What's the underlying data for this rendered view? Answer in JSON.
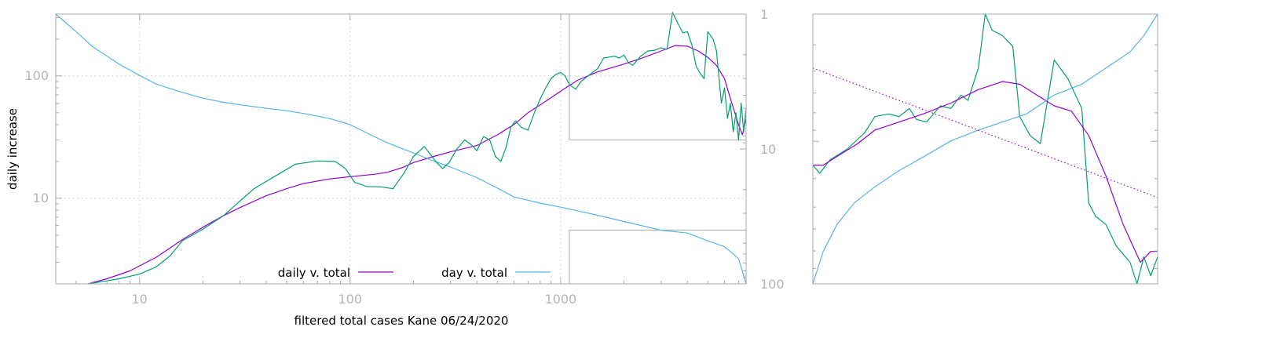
{
  "chart_data": [
    {
      "type": "line",
      "xlabel": "filtered total cases Kane 06/24/2020",
      "ylabel": "daily increase",
      "x_scale": "log",
      "y_scale": "log",
      "xlim": [
        4,
        7600
      ],
      "ylim": [
        2,
        320
      ],
      "x_ticks": [
        10,
        100,
        1000
      ],
      "y_ticks": [
        10,
        100
      ],
      "y2_scale": "log-reversed",
      "y2lim": [
        1,
        100
      ],
      "y2_ticks": [
        1,
        10,
        100
      ],
      "grid": true,
      "legend_position": "bottom-center",
      "inset_boxes": [
        {
          "x": [
            1100,
            7600
          ],
          "y": [
            30,
            320
          ]
        },
        {
          "x": [
            1100,
            7600
          ],
          "y": [
            2,
            5.5
          ]
        }
      ],
      "series": [
        {
          "name": "daily v. total",
          "color": "#9400d3",
          "axis": "y",
          "points": [
            [
              5.7,
              2
            ],
            [
              7,
              2.2
            ],
            [
              9,
              2.55
            ],
            [
              12,
              3.3
            ],
            [
              16,
              4.6
            ],
            [
              20,
              5.8
            ],
            [
              25,
              7.2
            ],
            [
              30,
              8.4
            ],
            [
              40,
              10.5
            ],
            [
              50,
              12
            ],
            [
              60,
              13.2
            ],
            [
              80,
              14.4
            ],
            [
              100,
              15
            ],
            [
              130,
              15.7
            ],
            [
              150,
              16.3
            ],
            [
              180,
              18
            ],
            [
              200,
              19.6
            ],
            [
              250,
              22
            ],
            [
              300,
              24
            ],
            [
              400,
              27
            ],
            [
              500,
              33
            ],
            [
              600,
              40
            ],
            [
              700,
              50
            ],
            [
              800,
              58
            ],
            [
              1000,
              75
            ],
            [
              1200,
              92
            ],
            [
              1500,
              108
            ],
            [
              2000,
              125
            ],
            [
              2500,
              142
            ],
            [
              3000,
              160
            ],
            [
              3500,
              177
            ],
            [
              4000,
              175
            ],
            [
              4500,
              160
            ],
            [
              5000,
              142
            ],
            [
              5500,
              122
            ],
            [
              6000,
              95
            ],
            [
              6500,
              60
            ],
            [
              7000,
              40
            ],
            [
              7300,
              33
            ],
            [
              7600,
              45
            ]
          ]
        },
        {
          "name": "day v. total",
          "color": "#56b4e9",
          "axis": "y2",
          "points": [
            [
              4,
              1
            ],
            [
              5,
              1.35
            ],
            [
              6,
              1.75
            ],
            [
              8,
              2.35
            ],
            [
              10,
              2.85
            ],
            [
              12,
              3.3
            ],
            [
              15,
              3.7
            ],
            [
              20,
              4.2
            ],
            [
              25,
              4.5
            ],
            [
              30,
              4.7
            ],
            [
              40,
              5
            ],
            [
              50,
              5.2
            ],
            [
              60,
              5.45
            ],
            [
              80,
              5.95
            ],
            [
              100,
              6.6
            ],
            [
              120,
              7.6
            ],
            [
              150,
              9
            ],
            [
              200,
              10.7
            ],
            [
              250,
              12.3
            ],
            [
              300,
              13.6
            ],
            [
              400,
              16.3
            ],
            [
              500,
              19.5
            ],
            [
              600,
              22.7
            ],
            [
              800,
              25.2
            ],
            [
              1000,
              27
            ],
            [
              1500,
              31
            ],
            [
              2000,
              34.5
            ],
            [
              3000,
              40
            ],
            [
              4000,
              42
            ],
            [
              5000,
              48
            ],
            [
              6000,
              53
            ],
            [
              7000,
              65
            ],
            [
              7600,
              100
            ]
          ]
        },
        {
          "name": "",
          "color": "#009e73",
          "axis": "y",
          "points": [
            [
              5.7,
              2
            ],
            [
              8,
              2.2
            ],
            [
              10,
              2.4
            ],
            [
              12,
              2.75
            ],
            [
              14,
              3.4
            ],
            [
              16,
              4.5
            ],
            [
              20,
              5.6
            ],
            [
              25,
              7.2
            ],
            [
              30,
              9.5
            ],
            [
              35,
              12
            ],
            [
              45,
              15.5
            ],
            [
              55,
              19
            ],
            [
              70,
              20.2
            ],
            [
              85,
              20
            ],
            [
              95,
              17.5
            ],
            [
              105,
              13.5
            ],
            [
              120,
              12.5
            ],
            [
              140,
              12.4
            ],
            [
              160,
              12
            ],
            [
              180,
              16
            ],
            [
              200,
              22
            ],
            [
              225,
              26.5
            ],
            [
              255,
              20
            ],
            [
              275,
              17.5
            ],
            [
              295,
              19.5
            ],
            [
              320,
              25
            ],
            [
              350,
              30
            ],
            [
              380,
              27
            ],
            [
              400,
              24.5
            ],
            [
              430,
              32
            ],
            [
              460,
              30
            ],
            [
              490,
              22
            ],
            [
              520,
              20
            ],
            [
              550,
              26
            ],
            [
              580,
              38
            ],
            [
              610,
              43
            ],
            [
              650,
              38
            ],
            [
              700,
              36
            ],
            [
              750,
              50
            ],
            [
              800,
              65
            ],
            [
              850,
              80
            ],
            [
              900,
              95
            ],
            [
              950,
              103
            ],
            [
              1000,
              107
            ],
            [
              1050,
              100
            ],
            [
              1100,
              85
            ],
            [
              1180,
              78
            ],
            [
              1250,
              90
            ],
            [
              1350,
              100
            ],
            [
              1500,
              115
            ],
            [
              1600,
              140
            ],
            [
              1800,
              145
            ],
            [
              1900,
              140
            ],
            [
              2000,
              148
            ],
            [
              2100,
              128
            ],
            [
              2200,
              122
            ],
            [
              2400,
              145
            ],
            [
              2600,
              160
            ],
            [
              2800,
              162
            ],
            [
              3000,
              170
            ],
            [
              3200,
              165
            ],
            [
              3400,
              330
            ],
            [
              3600,
              270
            ],
            [
              3800,
              225
            ],
            [
              4000,
              230
            ],
            [
              4200,
              180
            ],
            [
              4400,
              120
            ],
            [
              4600,
              105
            ],
            [
              4800,
              95
            ],
            [
              5000,
              230
            ],
            [
              5300,
              200
            ],
            [
              5500,
              160
            ],
            [
              5800,
              60
            ],
            [
              6000,
              80
            ],
            [
              6200,
              45
            ],
            [
              6400,
              60
            ],
            [
              6600,
              35
            ],
            [
              6800,
              50
            ],
            [
              7000,
              30
            ],
            [
              7200,
              60
            ],
            [
              7400,
              35
            ],
            [
              7600,
              55
            ]
          ]
        }
      ]
    },
    {
      "type": "line",
      "x_scale": "log",
      "y_scale": "log",
      "series": [
        {
          "name": "",
          "color": "#009e73",
          "points": [
            [
              0,
              0.44
            ],
            [
              0.02,
              0.41
            ],
            [
              0.05,
              0.46
            ],
            [
              0.1,
              0.5
            ],
            [
              0.15,
              0.56
            ],
            [
              0.18,
              0.62
            ],
            [
              0.22,
              0.63
            ],
            [
              0.25,
              0.62
            ],
            [
              0.28,
              0.65
            ],
            [
              0.3,
              0.61
            ],
            [
              0.33,
              0.6
            ],
            [
              0.37,
              0.66
            ],
            [
              0.4,
              0.65
            ],
            [
              0.43,
              0.7
            ],
            [
              0.45,
              0.68
            ],
            [
              0.48,
              0.8
            ],
            [
              0.5,
              1
            ],
            [
              0.52,
              0.94
            ],
            [
              0.55,
              0.92
            ],
            [
              0.58,
              0.88
            ],
            [
              0.6,
              0.62
            ],
            [
              0.63,
              0.55
            ],
            [
              0.66,
              0.52
            ],
            [
              0.7,
              0.83
            ],
            [
              0.74,
              0.76
            ],
            [
              0.78,
              0.65
            ],
            [
              0.8,
              0.3
            ],
            [
              0.82,
              0.25
            ],
            [
              0.85,
              0.22
            ],
            [
              0.88,
              0.14
            ],
            [
              0.92,
              0.08
            ],
            [
              0.94,
              0.0
            ],
            [
              0.96,
              0.1
            ],
            [
              0.98,
              0.03
            ],
            [
              1,
              0.1
            ]
          ]
        },
        {
          "name": "",
          "color": "#9400d3",
          "points": [
            [
              0,
              0.44
            ],
            [
              0.03,
              0.44
            ],
            [
              0.08,
              0.48
            ],
            [
              0.13,
              0.52
            ],
            [
              0.18,
              0.57
            ],
            [
              0.25,
              0.6
            ],
            [
              0.32,
              0.63
            ],
            [
              0.4,
              0.67
            ],
            [
              0.48,
              0.72
            ],
            [
              0.55,
              0.75
            ],
            [
              0.6,
              0.74
            ],
            [
              0.65,
              0.7
            ],
            [
              0.7,
              0.66
            ],
            [
              0.75,
              0.64
            ],
            [
              0.8,
              0.55
            ],
            [
              0.85,
              0.4
            ],
            [
              0.9,
              0.22
            ],
            [
              0.95,
              0.08
            ],
            [
              0.98,
              0.12
            ],
            [
              1,
              0.12
            ]
          ]
        },
        {
          "name": "",
          "color": "#56b4e9",
          "points": [
            [
              0,
              0
            ],
            [
              0.03,
              0.12
            ],
            [
              0.07,
              0.22
            ],
            [
              0.12,
              0.3
            ],
            [
              0.18,
              0.36
            ],
            [
              0.25,
              0.42
            ],
            [
              0.32,
              0.47
            ],
            [
              0.4,
              0.53
            ],
            [
              0.48,
              0.57
            ],
            [
              0.55,
              0.6
            ],
            [
              0.62,
              0.63
            ],
            [
              0.7,
              0.7
            ],
            [
              0.78,
              0.74
            ],
            [
              0.85,
              0.8
            ],
            [
              0.92,
              0.86
            ],
            [
              0.96,
              0.92
            ],
            [
              1,
              1
            ]
          ]
        },
        {
          "name": "",
          "color": "#9400d3",
          "style": "dotted",
          "points": [
            [
              0,
              0.8
            ],
            [
              1,
              0.32
            ]
          ]
        }
      ]
    }
  ],
  "legend": [
    {
      "label": "daily v. total",
      "color": "#9400d3"
    },
    {
      "label": "day v. total",
      "color": "#56b4e9"
    }
  ]
}
